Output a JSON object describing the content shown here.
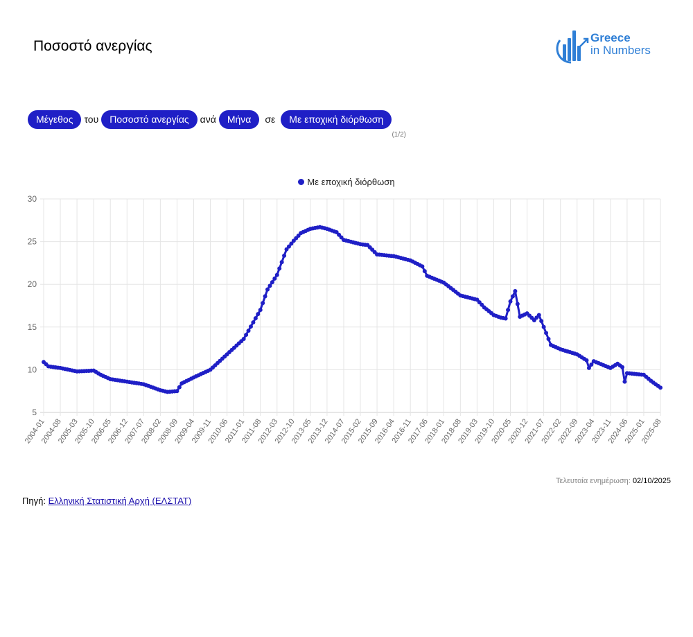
{
  "page": {
    "title": "Ποσοστό ανεργίας",
    "logo": {
      "line1": "Greece",
      "line2": "in Numbers"
    }
  },
  "selectors": {
    "measure": "Μέγεθος",
    "joiner1": "του",
    "indicator": "Ποσοστό ανεργίας",
    "joiner2": "ανά",
    "period": "Μήνα",
    "joiner3": "σε",
    "adjustment": "Με εποχική διόρθωση",
    "pager": "(1/2)"
  },
  "footer": {
    "updated_label": "Τελευταία ενημέρωση:",
    "updated_value": "02/10/2025",
    "source_label": "Πηγή:",
    "source_link": "Ελληνική Στατιστική Αρχή (ΕΛΣΤΑΤ)"
  },
  "colors": {
    "accent": "#1f1fc6",
    "logo": "#2f7fd6",
    "grid": "#e5e5e5"
  },
  "chart_data": {
    "type": "line",
    "title": "",
    "xlabel": "",
    "ylabel": "",
    "ylim": [
      5,
      30
    ],
    "yticks": [
      5,
      10,
      15,
      20,
      25,
      30
    ],
    "grid": true,
    "legend": "top-center",
    "x_tick_labels": [
      "2004-01",
      "2004-08",
      "2005-03",
      "2005-10",
      "2006-05",
      "2006-12",
      "2007-07",
      "2008-02",
      "2008-09",
      "2009-04",
      "2009-11",
      "2010-06",
      "2011-01",
      "2011-08",
      "2012-03",
      "2012-10",
      "2013-05",
      "2013-12",
      "2014-07",
      "2015-02",
      "2015-09",
      "2016-04",
      "2016-11",
      "2017-06",
      "2018-01",
      "2018-08",
      "2019-03",
      "2019-10",
      "2020-05",
      "2020-12",
      "2021-07",
      "2022-02",
      "2022-09",
      "2023-04",
      "2023-11",
      "2024-06",
      "2025-01",
      "2025-08"
    ],
    "x_start": "2004-01",
    "x_end": "2025-08",
    "series": [
      {
        "name": "Με εποχική διόρθωση",
        "color": "#1f1fc6",
        "anchors": [
          [
            "2004-01",
            10.9
          ],
          [
            "2004-03",
            10.4
          ],
          [
            "2004-08",
            10.2
          ],
          [
            "2005-03",
            9.8
          ],
          [
            "2005-10",
            9.9
          ],
          [
            "2006-01",
            9.4
          ],
          [
            "2006-05",
            8.9
          ],
          [
            "2006-12",
            8.6
          ],
          [
            "2007-07",
            8.3
          ],
          [
            "2008-02",
            7.6
          ],
          [
            "2008-05",
            7.4
          ],
          [
            "2008-09",
            7.5
          ],
          [
            "2008-11",
            8.4
          ],
          [
            "2009-04",
            9.1
          ],
          [
            "2009-11",
            10.0
          ],
          [
            "2010-06",
            11.8
          ],
          [
            "2011-01",
            13.6
          ],
          [
            "2011-08",
            17.0
          ],
          [
            "2011-11",
            19.4
          ],
          [
            "2012-03",
            21.1
          ],
          [
            "2012-07",
            24.1
          ],
          [
            "2012-10",
            25.1
          ],
          [
            "2013-01",
            26.0
          ],
          [
            "2013-05",
            26.5
          ],
          [
            "2013-09",
            26.7
          ],
          [
            "2013-12",
            26.5
          ],
          [
            "2014-04",
            26.1
          ],
          [
            "2014-07",
            25.2
          ],
          [
            "2015-02",
            24.7
          ],
          [
            "2015-05",
            24.6
          ],
          [
            "2015-09",
            23.5
          ],
          [
            "2016-04",
            23.3
          ],
          [
            "2016-11",
            22.8
          ],
          [
            "2017-04",
            22.1
          ],
          [
            "2017-06",
            21.0
          ],
          [
            "2018-01",
            20.2
          ],
          [
            "2018-08",
            18.7
          ],
          [
            "2019-03",
            18.2
          ],
          [
            "2019-06",
            17.3
          ],
          [
            "2019-10",
            16.4
          ],
          [
            "2020-01",
            16.1
          ],
          [
            "2020-03",
            16.0
          ],
          [
            "2020-05",
            18.0
          ],
          [
            "2020-07",
            19.2
          ],
          [
            "2020-09",
            16.2
          ],
          [
            "2020-12",
            16.6
          ],
          [
            "2021-03",
            15.8
          ],
          [
            "2021-05",
            16.4
          ],
          [
            "2021-07",
            15.0
          ],
          [
            "2021-10",
            12.9
          ],
          [
            "2022-02",
            12.4
          ],
          [
            "2022-09",
            11.8
          ],
          [
            "2023-01",
            11.1
          ],
          [
            "2023-02",
            10.2
          ],
          [
            "2023-04",
            11.0
          ],
          [
            "2023-11",
            10.2
          ],
          [
            "2024-02",
            10.7
          ],
          [
            "2024-04",
            10.3
          ],
          [
            "2024-05",
            8.6
          ],
          [
            "2024-06",
            9.6
          ],
          [
            "2025-01",
            9.4
          ],
          [
            "2025-04",
            8.7
          ],
          [
            "2025-08",
            7.9
          ]
        ]
      }
    ]
  }
}
